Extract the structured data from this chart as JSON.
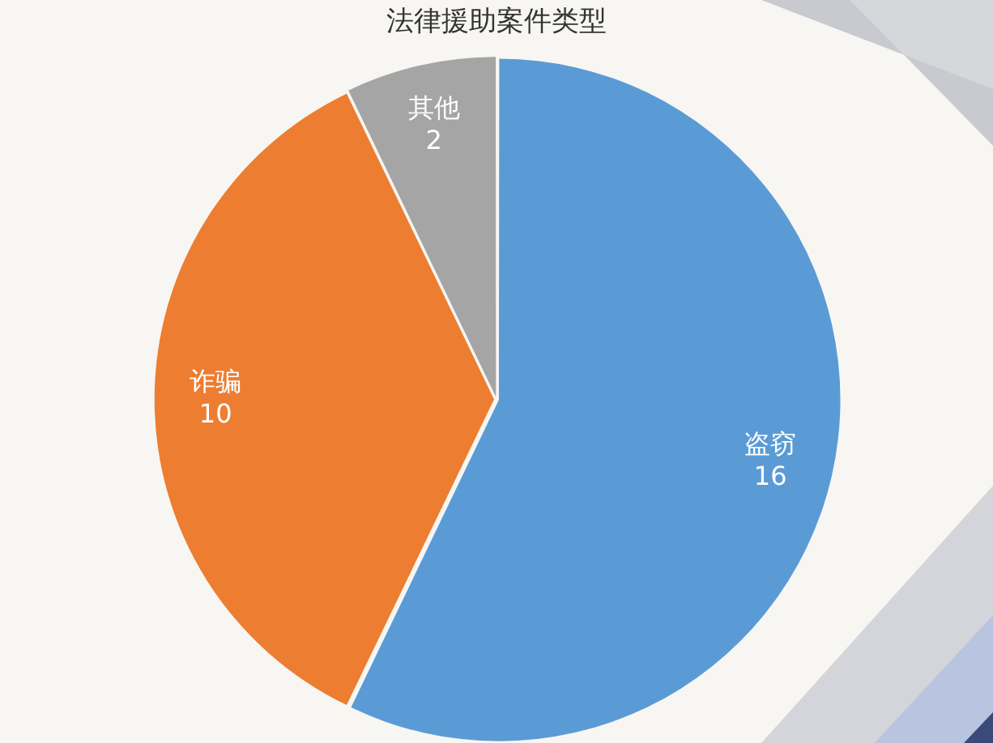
{
  "chart_data": {
    "type": "pie",
    "title": "法律援助案件类型",
    "categories": [
      "盗窃",
      "诈骗",
      "其他"
    ],
    "values": [
      16,
      10,
      2
    ],
    "colors": [
      "#5b9bd5",
      "#ed7d31",
      "#a5a5a5"
    ],
    "data_labels": true,
    "legend": false
  }
}
